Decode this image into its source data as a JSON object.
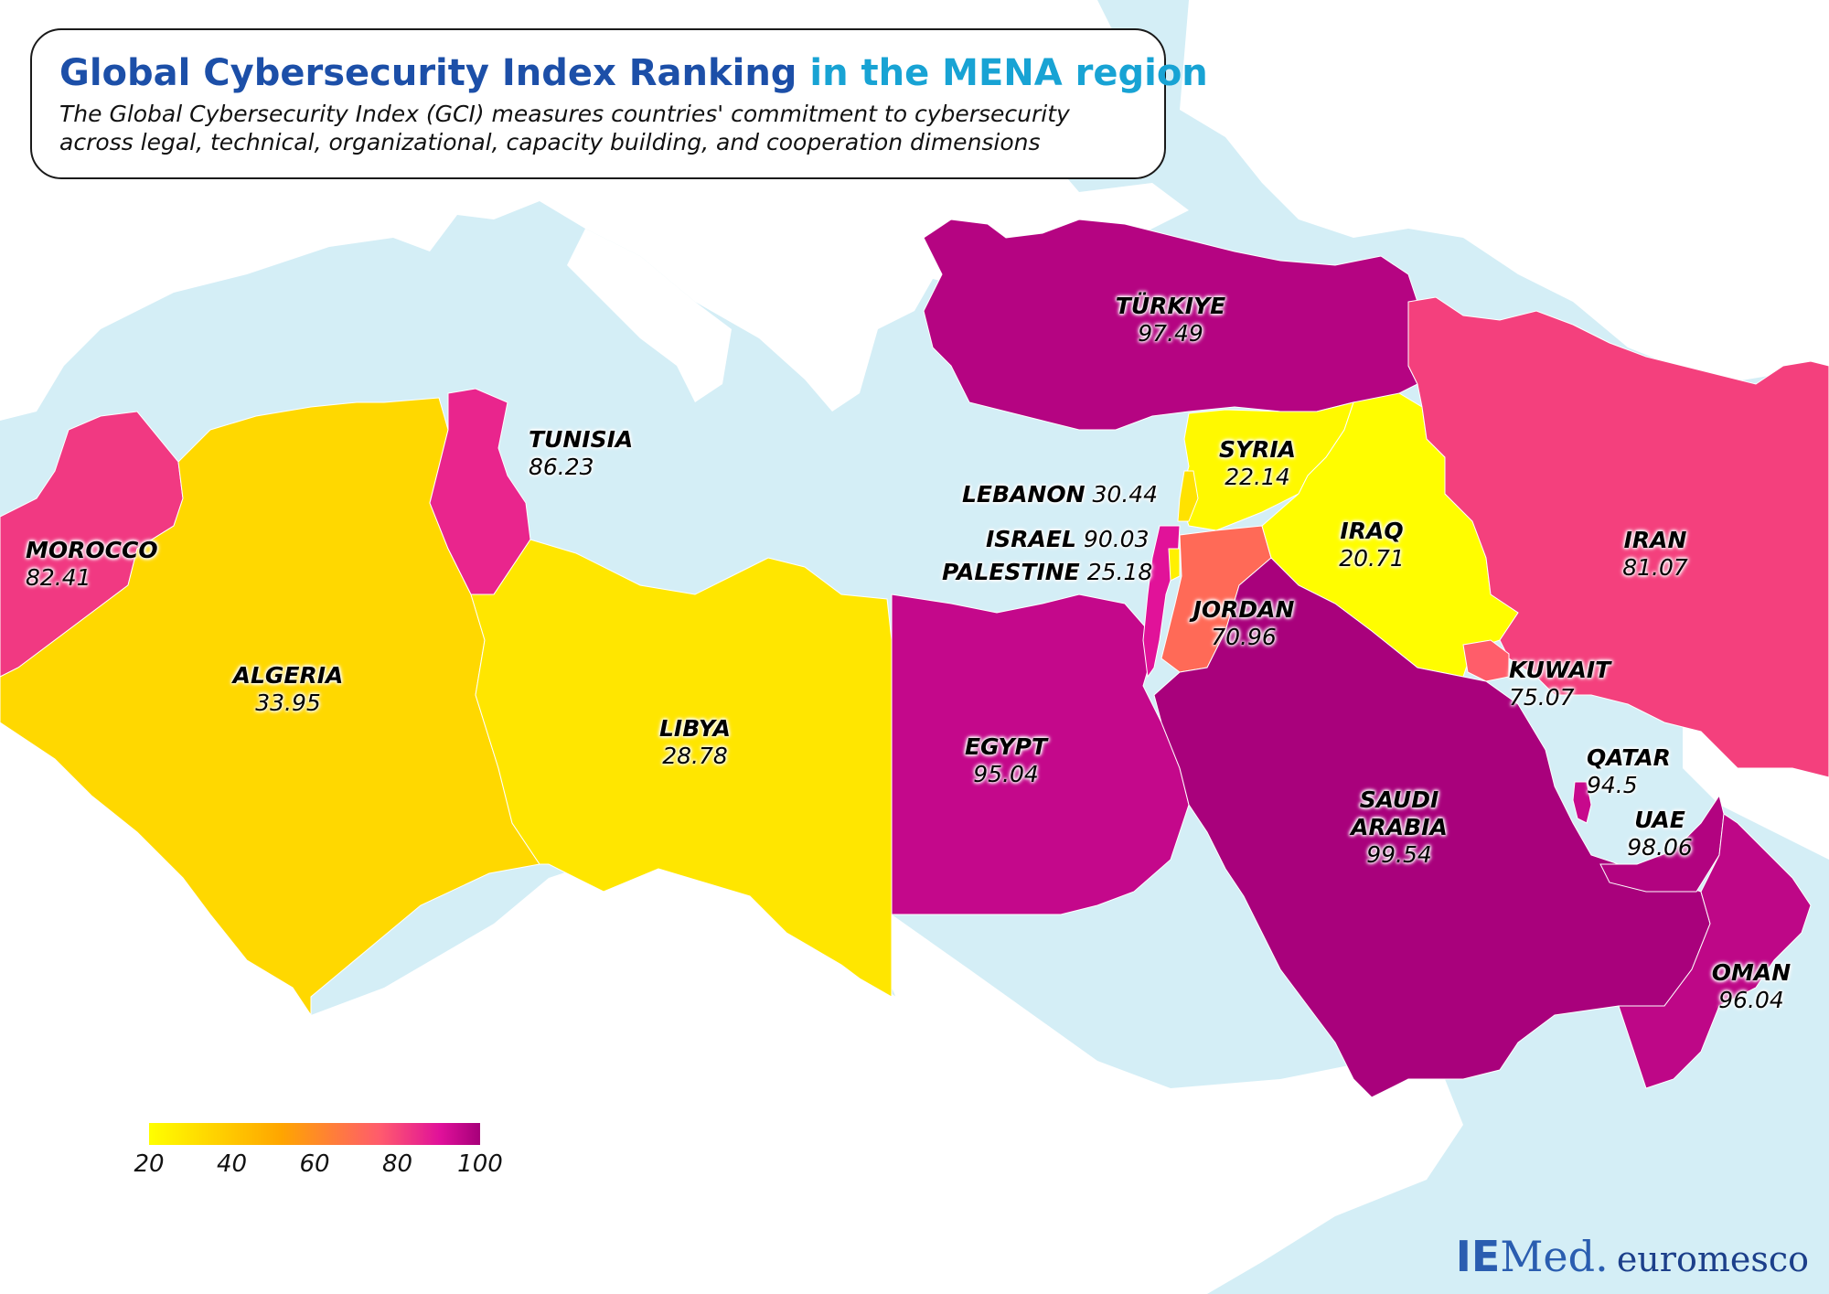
{
  "title": {
    "main": "Global Cybersecurity Index Ranking",
    "accent": "in the MENA region",
    "subtitle_line1": "The Global Cybersecurity Index (GCI) measures countries' commitment to cybersecurity",
    "subtitle_line2": "across legal, technical, organizational, capacity building, and cooperation dimensions"
  },
  "colors": {
    "sea": "#d4eef6",
    "other_land": "#ffffff",
    "scale": [
      "#ffff00",
      "#ffa500",
      "#ff5a6e",
      "#e0109a",
      "#a6007a"
    ]
  },
  "countries": {
    "turkiye": {
      "name": "TÜRKIYE",
      "value": "97.49",
      "score": 97.49
    },
    "tunisia": {
      "name": "TUNISIA",
      "value": "86.23",
      "score": 86.23
    },
    "morocco": {
      "name": "MOROCCO",
      "value": "82.41",
      "score": 82.41
    },
    "algeria": {
      "name": "ALGERIA",
      "value": "33.95",
      "score": 33.95
    },
    "libya": {
      "name": "LIBYA",
      "value": "28.78",
      "score": 28.78
    },
    "egypt": {
      "name": "EGYPT",
      "value": "95.04",
      "score": 95.04
    },
    "lebanon": {
      "name": "LEBANON",
      "value": "30.44",
      "score": 30.44
    },
    "israel": {
      "name": "ISRAEL",
      "value": "90.03",
      "score": 90.03
    },
    "palestine": {
      "name": "PALESTINE",
      "value": "25.18",
      "score": 25.18
    },
    "syria": {
      "name": "SYRIA",
      "value": "22.14",
      "score": 22.14
    },
    "iraq": {
      "name": "IRAQ",
      "value": "20.71",
      "score": 20.71
    },
    "jordan": {
      "name": "JORDAN",
      "value": "70.96",
      "score": 70.96
    },
    "iran": {
      "name": "IRAN",
      "value": "81.07",
      "score": 81.07
    },
    "kuwait": {
      "name": "KUWAIT",
      "value": "75.07",
      "score": 75.07
    },
    "qatar": {
      "name": "QATAR",
      "value": "94.5",
      "score": 94.5
    },
    "uae": {
      "name": "UAE",
      "value": "98.06",
      "score": 98.06
    },
    "saudi": {
      "name": "SAUDI ARABIA",
      "value": "99.54",
      "score": 99.54
    },
    "oman": {
      "name": "OMAN",
      "value": "96.04",
      "score": 96.04
    }
  },
  "legend": {
    "ticks": [
      "20",
      "40",
      "60",
      "80",
      "100"
    ],
    "min": 20,
    "max": 100
  },
  "logo": {
    "ie": "IE",
    "med": "Med.",
    "euromesco": "euromesco"
  }
}
